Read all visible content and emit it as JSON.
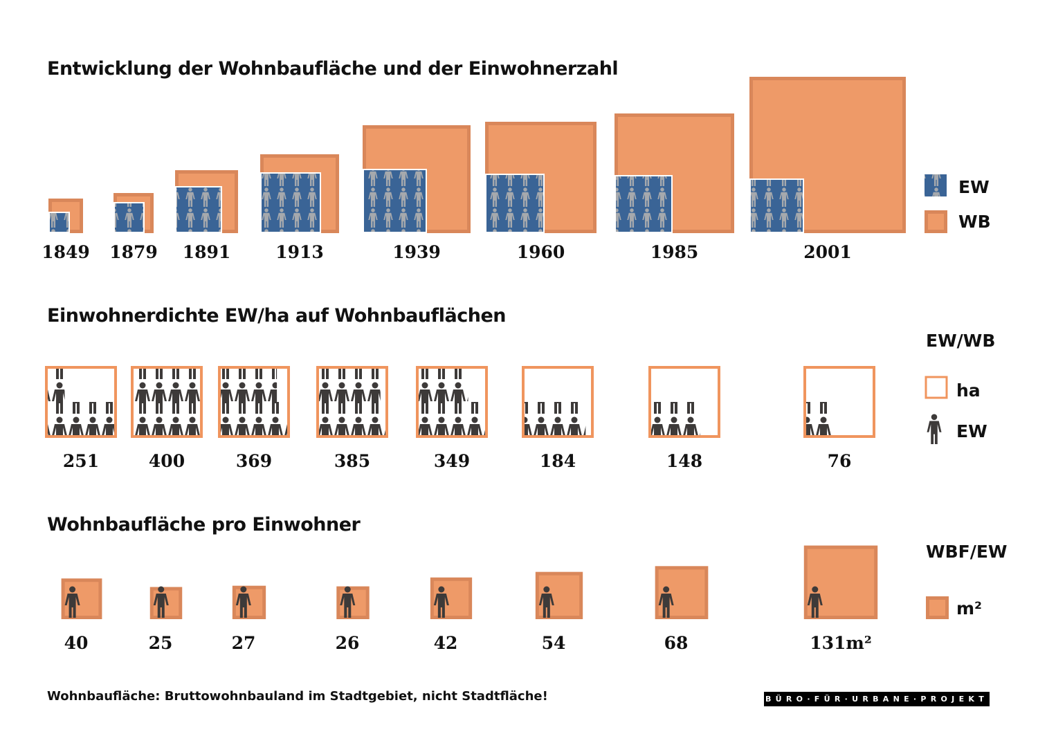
{
  "colors": {
    "wb": "#ee9a68",
    "wb_border": "#d9875a",
    "ew": "#3a6496",
    "ew_figure": "#a6a9ad",
    "person": "#3d3a39",
    "frame": "#f0955e"
  },
  "chart_data": [
    {
      "type": "proportional-squares",
      "title": "Entwicklung der Wohnbaufläche und der Einwohnerzahl",
      "categories": [
        "1849",
        "1879",
        "1891",
        "1913",
        "1939",
        "1960",
        "1985",
        "2001"
      ],
      "legend": [
        {
          "key": "EW",
          "icon": "people-pattern"
        },
        {
          "key": "WB",
          "icon": "orange-square"
        }
      ]
    },
    {
      "type": "pictogram",
      "title": "Einwohnerdichte EW/ha auf Wohnbauflächen",
      "categories": [
        "1849",
        "1879",
        "1891",
        "1913",
        "1939",
        "1960",
        "1985",
        "2001"
      ],
      "values": [
        251,
        400,
        369,
        385,
        349,
        184,
        148,
        76
      ],
      "labels": [
        "251",
        "400",
        "369",
        "385",
        "349",
        "184",
        "148",
        "76"
      ],
      "legend_title": "EW/WB",
      "legend": [
        {
          "key": "ha",
          "icon": "orange-frame"
        },
        {
          "key": "EW",
          "icon": "person-icon"
        }
      ]
    },
    {
      "type": "proportional-squares",
      "title": "Wohnbaufläche pro Einwohner",
      "categories": [
        "1849",
        "1879",
        "1891",
        "1913",
        "1939",
        "1960",
        "1985",
        "2001"
      ],
      "values": [
        40,
        25,
        27,
        26,
        42,
        54,
        68,
        131
      ],
      "labels": [
        "40",
        "25",
        "27",
        "26",
        "42",
        "54",
        "68",
        "131m²"
      ],
      "unit": "m²",
      "legend_title": "WBF/EW",
      "legend": [
        {
          "key": "m²",
          "icon": "orange-square"
        }
      ]
    }
  ],
  "footnote": "Wohnbaufläche: Bruttowohnbauland im Stadtgebiet, nicht Stadtfläche!",
  "logo": "BÜRO·FÜR·URBANE·PROJEKT"
}
